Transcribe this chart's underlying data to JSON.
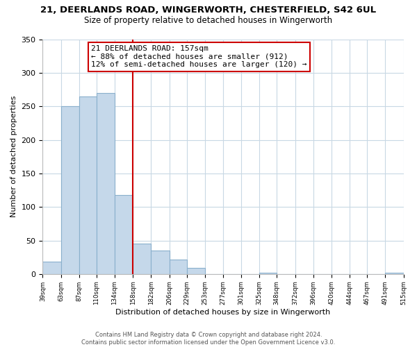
{
  "title": "21, DEERLANDS ROAD, WINGERWORTH, CHESTERFIELD, S42 6UL",
  "subtitle": "Size of property relative to detached houses in Wingerworth",
  "xlabel": "Distribution of detached houses by size in Wingerworth",
  "ylabel": "Number of detached properties",
  "bar_edges": [
    39,
    63,
    87,
    110,
    134,
    158,
    182,
    206,
    229,
    253,
    277,
    301,
    325,
    348,
    372,
    396,
    420,
    444,
    467,
    491,
    515
  ],
  "bar_heights": [
    18,
    250,
    265,
    270,
    118,
    45,
    35,
    22,
    9,
    0,
    0,
    0,
    2,
    0,
    0,
    0,
    0,
    0,
    0,
    2
  ],
  "bar_color": "#c5d8ea",
  "bar_edge_color": "#8ab0cc",
  "vline_x": 158,
  "vline_color": "#cc0000",
  "annotation_title": "21 DEERLANDS ROAD: 157sqm",
  "annotation_line1": "← 88% of detached houses are smaller (912)",
  "annotation_line2": "12% of semi-detached houses are larger (120) →",
  "annotation_box_color": "#cc0000",
  "ylim": [
    0,
    350
  ],
  "tick_labels": [
    "39sqm",
    "63sqm",
    "87sqm",
    "110sqm",
    "134sqm",
    "158sqm",
    "182sqm",
    "206sqm",
    "229sqm",
    "253sqm",
    "277sqm",
    "301sqm",
    "325sqm",
    "348sqm",
    "372sqm",
    "396sqm",
    "420sqm",
    "444sqm",
    "467sqm",
    "491sqm",
    "515sqm"
  ],
  "footer_line1": "Contains HM Land Registry data © Crown copyright and database right 2024.",
  "footer_line2": "Contains public sector information licensed under the Open Government Licence v3.0.",
  "background_color": "#ffffff",
  "grid_color": "#c8d8e4"
}
